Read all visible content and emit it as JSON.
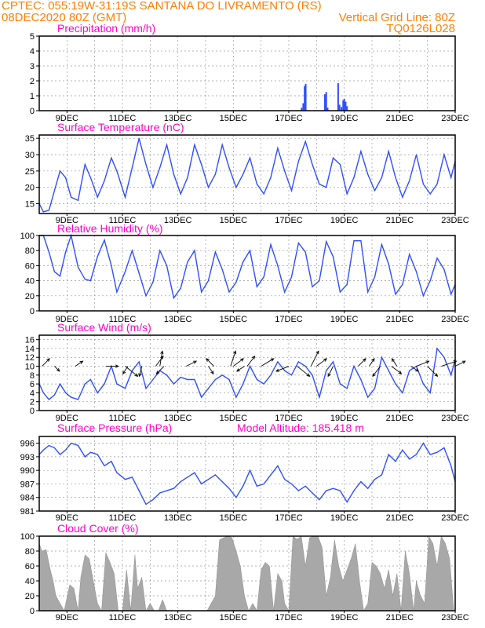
{
  "header": {
    "left1": "CPTEC:   055:19W-31:19S   SANTANA DO LIVRAMENTO (RS)",
    "left2": "08DEC2020 80Z (GMT)",
    "right2": "Vertical Grid Line: 80Z",
    "right3": "TQ0126L028"
  },
  "colors": {
    "orange": "#ff7f00",
    "magenta": "#ff00cc",
    "blue": "#2f4fff",
    "gray": "#a8a8a8"
  },
  "x_axis": {
    "labels": [
      "9DEC",
      "11DEC",
      "13DEC",
      "15DEC",
      "17DEC",
      "19DEC",
      "21DEC",
      "23DEC"
    ],
    "label_days": [
      9,
      11,
      13,
      15,
      17,
      19,
      21,
      23
    ],
    "start_day": 8.0,
    "end_day": 23.0
  },
  "chart_data": [
    {
      "id": "precip",
      "type": "bar",
      "title": "Precipitation (mm/h)",
      "ylim": [
        0,
        5
      ],
      "yticks": [
        0,
        1,
        2,
        3,
        4,
        5
      ],
      "x": [
        17.46,
        17.52,
        17.57,
        17.61,
        18.3,
        18.35,
        18.4,
        18.78,
        18.83,
        18.9,
        18.96,
        19.0,
        19.05,
        19.1
      ],
      "values": [
        0.2,
        0.5,
        1.65,
        1.8,
        1.1,
        1.25,
        0.2,
        1.85,
        0.4,
        0.25,
        0.7,
        0.8,
        0.6,
        0.3
      ]
    },
    {
      "id": "temp",
      "type": "line",
      "title": "Surface Temperature (nC)",
      "ylim": [
        12,
        36
      ],
      "yticks": [
        15,
        20,
        25,
        30,
        35
      ],
      "x": [
        8.0,
        8.15,
        8.35,
        8.55,
        8.75,
        8.95,
        9.15,
        9.4,
        9.65,
        9.85,
        10.1,
        10.35,
        10.6,
        10.8,
        11.1,
        11.35,
        11.6,
        11.85,
        12.1,
        12.35,
        12.6,
        12.85,
        13.1,
        13.35,
        13.6,
        13.85,
        14.1,
        14.35,
        14.6,
        14.85,
        15.1,
        15.35,
        15.6,
        15.85,
        16.1,
        16.35,
        16.6,
        16.85,
        17.1,
        17.35,
        17.6,
        17.85,
        18.1,
        18.35,
        18.6,
        18.85,
        19.1,
        19.35,
        19.6,
        19.85,
        20.1,
        20.35,
        20.6,
        20.85,
        21.1,
        21.35,
        21.6,
        21.85,
        22.1,
        22.35,
        22.6,
        22.85,
        23.0
      ],
      "values": [
        15,
        12.5,
        13,
        19,
        25,
        23,
        17,
        16,
        27,
        23,
        17,
        22,
        29,
        25,
        17,
        26,
        35,
        27,
        20,
        26,
        33,
        24,
        18,
        23,
        33,
        27,
        20,
        24,
        33,
        26,
        20,
        24,
        29,
        21,
        18,
        23,
        32,
        25,
        19,
        28,
        34,
        27,
        21,
        20,
        29,
        27,
        18,
        23,
        31,
        24,
        19,
        23,
        31,
        23,
        17,
        22,
        30,
        21,
        18,
        21,
        30,
        23,
        28
      ]
    },
    {
      "id": "rh",
      "type": "line",
      "title": "Relative Humidity (%)",
      "ylim": [
        0,
        100
      ],
      "yticks": [
        0,
        20,
        40,
        60,
        80,
        100
      ],
      "x": [
        8.0,
        8.15,
        8.35,
        8.55,
        8.75,
        8.95,
        9.15,
        9.4,
        9.65,
        9.85,
        10.1,
        10.35,
        10.6,
        10.8,
        11.1,
        11.35,
        11.6,
        11.85,
        12.1,
        12.35,
        12.6,
        12.85,
        13.1,
        13.35,
        13.6,
        13.85,
        14.1,
        14.35,
        14.6,
        14.85,
        15.1,
        15.35,
        15.6,
        15.85,
        16.1,
        16.35,
        16.6,
        16.85,
        17.1,
        17.35,
        17.6,
        17.85,
        18.1,
        18.35,
        18.6,
        18.85,
        19.1,
        19.35,
        19.6,
        19.85,
        20.1,
        20.35,
        20.6,
        20.85,
        21.1,
        21.35,
        21.6,
        21.85,
        22.1,
        22.35,
        22.6,
        22.85,
        23.0
      ],
      "values": [
        100,
        100,
        78,
        52,
        46,
        78,
        100,
        58,
        42,
        40,
        72,
        94,
        60,
        25,
        52,
        80,
        50,
        20,
        38,
        80,
        60,
        17,
        30,
        65,
        80,
        25,
        40,
        78,
        55,
        25,
        38,
        65,
        80,
        32,
        45,
        88,
        60,
        25,
        45,
        90,
        78,
        32,
        40,
        92,
        72,
        25,
        35,
        93,
        93,
        25,
        45,
        88,
        62,
        22,
        35,
        75,
        52,
        20,
        40,
        70,
        55,
        22,
        35
      ]
    },
    {
      "id": "wind",
      "type": "line",
      "title": "Surface Wind (m/s)",
      "ylim": [
        0,
        17
      ],
      "yticks": [
        0,
        2,
        4,
        6,
        8,
        10,
        12,
        14,
        16
      ],
      "x": [
        8.0,
        8.15,
        8.35,
        8.55,
        8.75,
        8.95,
        9.15,
        9.4,
        9.65,
        9.85,
        10.1,
        10.35,
        10.6,
        10.8,
        11.1,
        11.35,
        11.6,
        11.85,
        12.1,
        12.35,
        12.6,
        12.85,
        13.1,
        13.35,
        13.6,
        13.85,
        14.1,
        14.35,
        14.6,
        14.85,
        15.1,
        15.35,
        15.6,
        15.85,
        16.1,
        16.35,
        16.6,
        16.85,
        17.1,
        17.35,
        17.6,
        17.85,
        18.1,
        18.35,
        18.6,
        18.85,
        19.1,
        19.35,
        19.6,
        19.85,
        20.1,
        20.35,
        20.6,
        20.85,
        21.1,
        21.35,
        21.6,
        21.85,
        22.1,
        22.35,
        22.6,
        22.85,
        23.0
      ],
      "values": [
        6,
        4,
        2.5,
        3.5,
        6,
        4,
        3,
        2.5,
        6,
        7,
        4,
        6,
        10,
        6,
        5,
        9,
        11,
        5,
        7,
        9,
        8,
        6,
        7.5,
        7,
        7,
        3,
        5,
        7,
        8,
        7,
        3,
        6,
        10,
        7,
        6,
        8,
        11,
        9,
        8,
        11,
        10,
        8,
        3,
        9,
        11,
        6,
        5,
        10,
        7,
        3,
        5,
        12,
        9,
        6,
        4,
        9,
        10,
        6,
        4,
        14,
        12,
        8,
        11.5
      ],
      "arrows_x": [
        8.1,
        8.55,
        9.3,
        10.4,
        11.1,
        11.2,
        11.7,
        12.2,
        12.35,
        12.5,
        13.3,
        14.1,
        14.3,
        14.9,
        15.0,
        15.4,
        15.5,
        16.0,
        17.0,
        17.3,
        17.8,
        18.0,
        18.6,
        19.5,
        19.9,
        20.3,
        20.7,
        20.9,
        21.4,
        21.6,
        22.0,
        22.5,
        23.0
      ],
      "arrows_u": [
        3,
        2,
        3,
        5,
        5,
        -2,
        -1,
        3,
        1,
        -3,
        4,
        2,
        -3,
        2,
        4,
        -3,
        3,
        5,
        -5,
        5,
        3,
        4,
        -2,
        3,
        2,
        -3,
        4,
        -2,
        3,
        5,
        4,
        6,
        4
      ],
      "arrows_v": [
        3,
        -2,
        2,
        0,
        -4,
        -3,
        -4,
        4,
        6,
        -3,
        2,
        -3,
        3,
        6,
        3,
        -2,
        4,
        3,
        -2,
        -4,
        6,
        3,
        -4,
        3,
        3,
        -4,
        -3,
        3,
        -2,
        2,
        -4,
        2,
        2
      ]
    },
    {
      "id": "pressure",
      "type": "line",
      "title": "Surface Pressure (hPa)",
      "annotation": "Model Altitude: 185.418  m",
      "ylim": [
        981,
        997.5
      ],
      "yticks": [
        981,
        984,
        987,
        990,
        993,
        996
      ],
      "x": [
        8.0,
        8.15,
        8.35,
        8.55,
        8.75,
        8.95,
        9.15,
        9.4,
        9.65,
        9.85,
        10.1,
        10.35,
        10.6,
        10.8,
        11.1,
        11.35,
        11.6,
        11.85,
        12.1,
        12.35,
        12.6,
        12.85,
        13.1,
        13.35,
        13.6,
        13.85,
        14.1,
        14.35,
        14.6,
        14.85,
        15.1,
        15.35,
        15.6,
        15.85,
        16.1,
        16.35,
        16.6,
        16.85,
        17.1,
        17.35,
        17.6,
        17.85,
        18.1,
        18.35,
        18.6,
        18.85,
        19.1,
        19.35,
        19.6,
        19.85,
        20.1,
        20.35,
        20.6,
        20.85,
        21.1,
        21.35,
        21.6,
        21.85,
        22.1,
        22.35,
        22.6,
        22.85,
        23.0
      ],
      "values": [
        993.5,
        994.5,
        995.5,
        995,
        993.5,
        994.5,
        996,
        995.5,
        993,
        994,
        993.5,
        991,
        992,
        989.5,
        988,
        988.5,
        985.5,
        982.5,
        983.5,
        985,
        985.5,
        986,
        987.5,
        988.5,
        989.5,
        987,
        988,
        989,
        987.5,
        986,
        984,
        986.5,
        990,
        986.5,
        987,
        989,
        991,
        988,
        987,
        985.5,
        986.5,
        985,
        983.5,
        985.5,
        986,
        985.5,
        983,
        985.5,
        987.5,
        986,
        988,
        989,
        993.5,
        992,
        994.5,
        992.5,
        993.5,
        996,
        993.5,
        994,
        995,
        991,
        987.5
      ]
    },
    {
      "id": "cloud",
      "type": "area",
      "title": "Cloud Cover (%)",
      "ylim": [
        0,
        100
      ],
      "yticks": [
        0,
        20,
        40,
        60,
        80,
        100
      ],
      "x": [
        8.0,
        8.1,
        8.25,
        8.4,
        8.5,
        8.6,
        8.75,
        8.9,
        9.1,
        9.25,
        9.4,
        9.5,
        9.65,
        9.8,
        9.95,
        10.1,
        10.25,
        10.4,
        10.55,
        10.7,
        10.85,
        11.0,
        11.15,
        11.3,
        11.45,
        11.55,
        11.7,
        11.85,
        12.0,
        12.15,
        12.3,
        12.45,
        12.6,
        12.75,
        12.9,
        13.05,
        13.2,
        13.35,
        13.5,
        13.65,
        13.8,
        13.95,
        14.05,
        14.2,
        14.35,
        14.5,
        14.65,
        14.8,
        14.95,
        15.1,
        15.25,
        15.4,
        15.55,
        15.7,
        15.85,
        16.0,
        16.15,
        16.3,
        16.45,
        16.6,
        16.75,
        16.85,
        17.0,
        17.15,
        17.3,
        17.45,
        17.6,
        17.75,
        17.9,
        18.05,
        18.2,
        18.35,
        18.5,
        18.65,
        18.8,
        18.95,
        19.1,
        19.25,
        19.4,
        19.55,
        19.7,
        19.85,
        20.0,
        20.15,
        20.3,
        20.45,
        20.6,
        20.75,
        20.9,
        21.05,
        21.2,
        21.35,
        21.5,
        21.6,
        21.75,
        21.9,
        22.05,
        22.2,
        22.35,
        22.5,
        22.65,
        22.8,
        22.95,
        23.0
      ],
      "values": [
        90,
        80,
        82,
        55,
        40,
        20,
        10,
        0,
        35,
        30,
        0,
        45,
        75,
        70,
        40,
        10,
        0,
        78,
        65,
        50,
        0,
        0,
        55,
        0,
        75,
        30,
        45,
        0,
        10,
        0,
        0,
        15,
        0,
        0,
        0,
        0,
        0,
        0,
        0,
        0,
        0,
        0,
        0,
        10,
        20,
        95,
        98,
        100,
        98,
        80,
        60,
        20,
        0,
        10,
        0,
        55,
        65,
        60,
        0,
        50,
        40,
        10,
        0,
        100,
        96,
        100,
        60,
        98,
        100,
        100,
        85,
        20,
        45,
        95,
        60,
        40,
        55,
        70,
        90,
        40,
        0,
        10,
        65,
        60,
        50,
        30,
        55,
        20,
        50,
        0,
        80,
        50,
        0,
        40,
        20,
        10,
        100,
        90,
        60,
        100,
        90,
        70,
        0,
        0
      ]
    }
  ]
}
